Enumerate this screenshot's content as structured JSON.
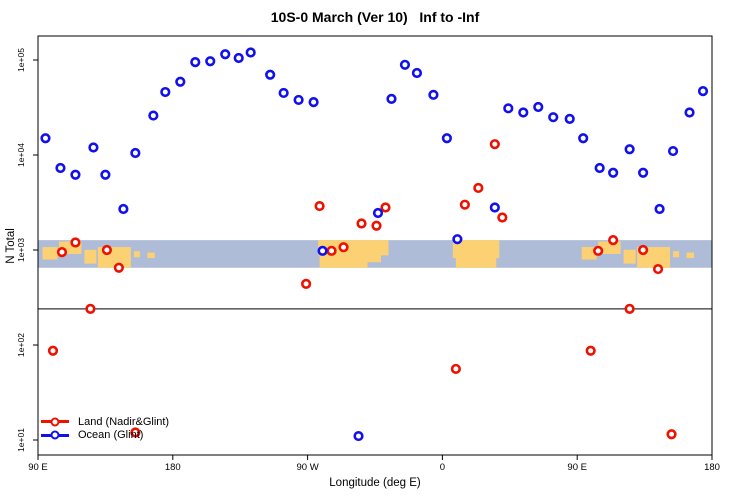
{
  "chart_data": {
    "type": "scatter",
    "title": "10S-0 March (Ver 10)   Inf to -Inf",
    "xlabel": "Longitude (deg E)",
    "ylabel": "N Total",
    "x_range": [
      90,
      540
    ],
    "x_ticks": [
      {
        "pos": 90,
        "label": "90 E"
      },
      {
        "pos": 180,
        "label": "180"
      },
      {
        "pos": 270,
        "label": "90 W"
      },
      {
        "pos": 360,
        "label": "0"
      },
      {
        "pos": 450,
        "label": "90 E"
      },
      {
        "pos": 540,
        "label": "180"
      }
    ],
    "y_ticks": [
      {
        "value": 10,
        "label": "1e+01"
      },
      {
        "value": 100,
        "label": "1e+02"
      },
      {
        "value": 1000,
        "label": "1e+03"
      },
      {
        "value": 10000,
        "label": "1e+04"
      },
      {
        "value": 100000,
        "label": "1e+05"
      }
    ],
    "y_scale": "log10",
    "grid": false,
    "legend_position": "bottom-left",
    "threshold_line": {
      "value": 240,
      "color": "#333333"
    },
    "map_band": {
      "description": "10S-0 latitude strip map across longitude",
      "ocean_color": "#aebcd8",
      "land_color": "#fcd174",
      "top_value": 1270,
      "bottom_value": 650,
      "land_patches": [
        {
          "l0": 93,
          "l1": 103,
          "t": 0.25,
          "b": 0.7
        },
        {
          "l0": 104,
          "l1": 119,
          "t": 0.05,
          "b": 0.5
        },
        {
          "l0": 121,
          "l1": 129,
          "t": 0.35,
          "b": 0.85
        },
        {
          "l0": 130,
          "l1": 152,
          "t": 0.25,
          "b": 1.0
        },
        {
          "l0": 154,
          "l1": 158,
          "t": 0.4,
          "b": 0.62
        },
        {
          "l0": 163,
          "l1": 168,
          "t": 0.45,
          "b": 0.65
        },
        {
          "l0": 277,
          "l1": 324,
          "t": 0.0,
          "b": 0.55
        },
        {
          "l0": 278,
          "l1": 310,
          "t": 0.5,
          "b": 1.0
        },
        {
          "l0": 310,
          "l1": 319,
          "t": 0.5,
          "b": 0.8
        },
        {
          "l0": 367,
          "l1": 398,
          "t": 0.0,
          "b": 0.65
        },
        {
          "l0": 369,
          "l1": 396,
          "t": 0.6,
          "b": 1.0
        },
        {
          "l0": 453,
          "l1": 463,
          "t": 0.25,
          "b": 0.7
        },
        {
          "l0": 464,
          "l1": 479,
          "t": 0.05,
          "b": 0.5
        },
        {
          "l0": 481,
          "l1": 489,
          "t": 0.35,
          "b": 0.85
        },
        {
          "l0": 490,
          "l1": 512,
          "t": 0.25,
          "b": 1.0
        },
        {
          "l0": 514,
          "l1": 518,
          "t": 0.4,
          "b": 0.62
        },
        {
          "l0": 523,
          "l1": 528,
          "t": 0.45,
          "b": 0.65
        }
      ]
    },
    "series": [
      {
        "name": "Land (Nadir&Glint)",
        "color": "#ee1100",
        "points": [
          [
            100,
            87
          ],
          [
            106,
            950
          ],
          [
            115,
            1200
          ],
          [
            125,
            240
          ],
          [
            136,
            1000
          ],
          [
            144,
            650
          ],
          [
            155,
            12
          ],
          [
            269,
            440
          ],
          [
            278,
            2900
          ],
          [
            286,
            980
          ],
          [
            294,
            1070
          ],
          [
            306,
            1900
          ],
          [
            316,
            1800
          ],
          [
            322,
            2800
          ],
          [
            369,
            56
          ],
          [
            375,
            3000
          ],
          [
            384,
            4500
          ],
          [
            395,
            13000
          ],
          [
            400,
            2200
          ],
          [
            459,
            87
          ],
          [
            464,
            980
          ],
          [
            474,
            1270
          ],
          [
            485,
            240
          ],
          [
            494,
            1000
          ],
          [
            504,
            630
          ],
          [
            513,
            11.5
          ]
        ]
      },
      {
        "name": "Ocean (Glint)",
        "color": "#1111ee",
        "points": [
          [
            95,
            15000
          ],
          [
            105,
            7300
          ],
          [
            115,
            6200
          ],
          [
            127,
            12000
          ],
          [
            135,
            6200
          ],
          [
            147,
            2700
          ],
          [
            155,
            10500
          ],
          [
            167,
            26000
          ],
          [
            175,
            46000
          ],
          [
            185,
            59000
          ],
          [
            195,
            95000
          ],
          [
            205,
            97000
          ],
          [
            215,
            115000
          ],
          [
            224,
            105000
          ],
          [
            232,
            120000
          ],
          [
            245,
            70000
          ],
          [
            254,
            45000
          ],
          [
            264,
            38000
          ],
          [
            274,
            36000
          ],
          [
            280,
            980
          ],
          [
            304,
            11
          ],
          [
            317,
            2450
          ],
          [
            326,
            39000
          ],
          [
            335,
            89000
          ],
          [
            343,
            73000
          ],
          [
            354,
            43000
          ],
          [
            363,
            15000
          ],
          [
            370,
            1300
          ],
          [
            395,
            2800
          ],
          [
            404,
            31000
          ],
          [
            414,
            28000
          ],
          [
            424,
            32000
          ],
          [
            434,
            25000
          ],
          [
            445,
            24000
          ],
          [
            454,
            15000
          ],
          [
            465,
            7300
          ],
          [
            474,
            6500
          ],
          [
            485,
            11500
          ],
          [
            494,
            6500
          ],
          [
            505,
            2700
          ],
          [
            514,
            11000
          ],
          [
            525,
            28000
          ],
          [
            534,
            47000
          ]
        ]
      }
    ]
  }
}
